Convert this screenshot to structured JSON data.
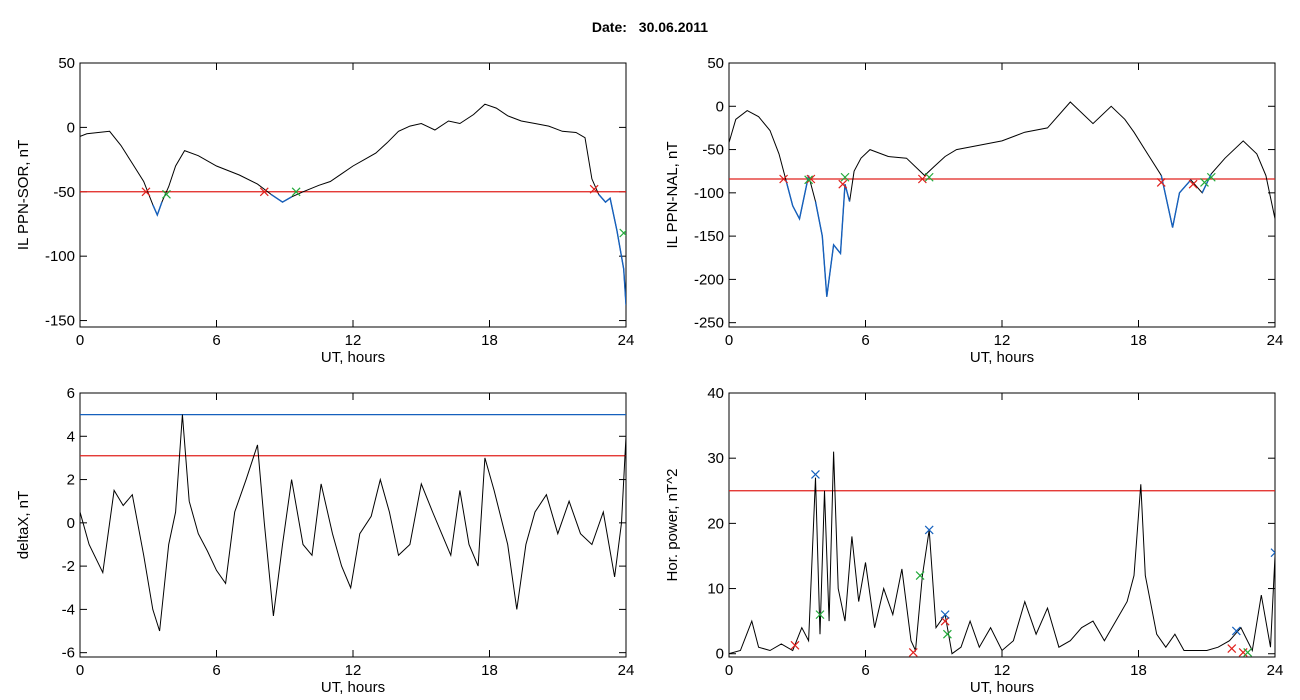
{
  "header": {
    "date_label": "Date:",
    "date_value": "30.06.2011"
  },
  "colors": {
    "signal": "#000000",
    "threshold": "#e0201c",
    "event": "#1560bd",
    "start_marker": "#e0201c",
    "end_marker": "#22a93a"
  },
  "chart_data": [
    {
      "type": "line",
      "xlabel": "UT, hours",
      "ylabel": "IL PPN-SOR, nT",
      "xlim": [
        0,
        24
      ],
      "ylim": [
        -155,
        50
      ],
      "xticks": [
        0,
        6,
        12,
        18,
        24
      ],
      "yticks": [
        -150,
        -100,
        -50,
        0,
        50
      ],
      "threshold": -50,
      "series": [
        {
          "values": [
            [
              0,
              -7
            ],
            [
              0.3,
              -5
            ],
            [
              0.8,
              -4
            ],
            [
              1.3,
              -3
            ],
            [
              1.8,
              -14
            ],
            [
              2.3,
              -28
            ],
            [
              2.8,
              -42
            ],
            [
              3.2,
              -60
            ],
            [
              3.4,
              -68
            ],
            [
              3.6,
              -58
            ],
            [
              3.9,
              -46
            ],
            [
              4.2,
              -30
            ],
            [
              4.6,
              -18
            ],
            [
              5.2,
              -22
            ],
            [
              6,
              -30
            ],
            [
              7,
              -37
            ],
            [
              7.8,
              -44
            ],
            [
              8.4,
              -52
            ],
            [
              8.9,
              -58
            ],
            [
              9.3,
              -54
            ],
            [
              9.8,
              -50
            ],
            [
              10.5,
              -45
            ],
            [
              11,
              -42
            ],
            [
              11.5,
              -36
            ],
            [
              12,
              -30
            ],
            [
              12.5,
              -25
            ],
            [
              13,
              -20
            ],
            [
              13.5,
              -12
            ],
            [
              14,
              -3
            ],
            [
              14.5,
              1
            ],
            [
              15,
              3
            ],
            [
              15.6,
              -2
            ],
            [
              16.2,
              5
            ],
            [
              16.7,
              3
            ],
            [
              17.3,
              10
            ],
            [
              17.8,
              18
            ],
            [
              18.3,
              15
            ],
            [
              18.8,
              9
            ],
            [
              19.4,
              5
            ],
            [
              20,
              3
            ],
            [
              20.6,
              1
            ],
            [
              21.2,
              -3
            ],
            [
              21.8,
              -4
            ],
            [
              22.2,
              -8
            ],
            [
              22.5,
              -40
            ],
            [
              22.8,
              -52
            ],
            [
              23.1,
              -58
            ],
            [
              23.3,
              -55
            ],
            [
              23.6,
              -80
            ],
            [
              23.9,
              -110
            ],
            [
              24,
              -138
            ]
          ]
        }
      ],
      "events": [
        {
          "start": 2.9,
          "end": 3.8
        },
        {
          "start": 8.1,
          "end": 9.6
        },
        {
          "start": 22.6,
          "end": 24
        }
      ],
      "start_markers": [
        [
          2.9,
          -50
        ],
        [
          8.1,
          -50
        ],
        [
          22.6,
          -48
        ]
      ],
      "end_markers": [
        [
          3.8,
          -52
        ],
        [
          9.5,
          -50
        ],
        [
          23.9,
          -82
        ]
      ]
    },
    {
      "type": "line",
      "xlabel": "UT, hours",
      "ylabel": "IL PPN-NAL, nT",
      "xlim": [
        0,
        24
      ],
      "ylim": [
        -255,
        50
      ],
      "xticks": [
        0,
        6,
        12,
        18,
        24
      ],
      "yticks": [
        -250,
        -200,
        -150,
        -100,
        -50,
        0,
        50
      ],
      "threshold": -84,
      "series": [
        {
          "values": [
            [
              0,
              -42
            ],
            [
              0.3,
              -15
            ],
            [
              0.8,
              -5
            ],
            [
              1.3,
              -12
            ],
            [
              1.8,
              -28
            ],
            [
              2.2,
              -55
            ],
            [
              2.5,
              -85
            ],
            [
              2.8,
              -115
            ],
            [
              3.1,
              -130
            ],
            [
              3.5,
              -80
            ],
            [
              3.8,
              -110
            ],
            [
              4.1,
              -150
            ],
            [
              4.3,
              -220
            ],
            [
              4.6,
              -160
            ],
            [
              4.9,
              -170
            ],
            [
              5.1,
              -90
            ],
            [
              5.3,
              -110
            ],
            [
              5.5,
              -75
            ],
            [
              5.8,
              -60
            ],
            [
              6.2,
              -50
            ],
            [
              7,
              -58
            ],
            [
              7.8,
              -60
            ],
            [
              8.6,
              -80
            ],
            [
              9,
              -70
            ],
            [
              9.5,
              -58
            ],
            [
              10,
              -50
            ],
            [
              11,
              -45
            ],
            [
              12,
              -40
            ],
            [
              13,
              -30
            ],
            [
              14,
              -25
            ],
            [
              15,
              5
            ],
            [
              16,
              -20
            ],
            [
              16.8,
              0
            ],
            [
              17.4,
              -15
            ],
            [
              17.8,
              -30
            ],
            [
              18.4,
              -55
            ],
            [
              19,
              -80
            ],
            [
              19.5,
              -140
            ],
            [
              19.8,
              -100
            ],
            [
              20.3,
              -85
            ],
            [
              20.8,
              -100
            ],
            [
              21.2,
              -78
            ],
            [
              21.8,
              -60
            ],
            [
              22.6,
              -40
            ],
            [
              23.2,
              -55
            ],
            [
              23.6,
              -80
            ],
            [
              24,
              -130
            ]
          ]
        }
      ],
      "events": [
        {
          "start": 2.4,
          "end": 3.6
        },
        {
          "start": 3.7,
          "end": 5.3
        },
        {
          "start": 8.5,
          "end": 8.8
        },
        {
          "start": 19,
          "end": 20.5
        },
        {
          "start": 20.6,
          "end": 21.2
        }
      ],
      "start_markers": [
        [
          2.4,
          -84
        ],
        [
          3.6,
          -84
        ],
        [
          5.0,
          -90
        ],
        [
          8.5,
          -84
        ],
        [
          19,
          -88
        ],
        [
          20.4,
          -90
        ]
      ],
      "end_markers": [
        [
          3.5,
          -85
        ],
        [
          5.1,
          -82
        ],
        [
          8.8,
          -82
        ],
        [
          20.9,
          -88
        ],
        [
          21.2,
          -82
        ]
      ]
    },
    {
      "type": "line",
      "xlabel": "UT, hours",
      "ylabel": "deltaX, nT",
      "xlim": [
        0,
        24
      ],
      "ylim": [
        -6.2,
        6
      ],
      "xticks": [
        0,
        6,
        12,
        18,
        24
      ],
      "yticks": [
        -6,
        -4,
        -2,
        0,
        2,
        4,
        6
      ],
      "threshold": 3.1,
      "threshold2": 5.0,
      "series": [
        {
          "values": [
            [
              0,
              0.5
            ],
            [
              0.4,
              -1
            ],
            [
              1,
              -2.3
            ],
            [
              1.5,
              1.5
            ],
            [
              1.9,
              0.8
            ],
            [
              2.3,
              1.3
            ],
            [
              2.8,
              -1.5
            ],
            [
              3.2,
              -4
            ],
            [
              3.5,
              -5
            ],
            [
              3.9,
              -1
            ],
            [
              4.2,
              0.5
            ],
            [
              4.5,
              5
            ],
            [
              4.8,
              1
            ],
            [
              5.2,
              -0.5
            ],
            [
              5.6,
              -1.3
            ],
            [
              6,
              -2.2
            ],
            [
              6.4,
              -2.8
            ],
            [
              6.8,
              0.5
            ],
            [
              7.3,
              2
            ],
            [
              7.8,
              3.6
            ],
            [
              8.1,
              0
            ],
            [
              8.5,
              -4.3
            ],
            [
              8.9,
              -1
            ],
            [
              9.3,
              2
            ],
            [
              9.8,
              -1
            ],
            [
              10.2,
              -1.5
            ],
            [
              10.6,
              1.8
            ],
            [
              11.1,
              -0.5
            ],
            [
              11.5,
              -2
            ],
            [
              11.9,
              -3
            ],
            [
              12.3,
              -0.5
            ],
            [
              12.8,
              0.3
            ],
            [
              13.2,
              2
            ],
            [
              13.6,
              0.5
            ],
            [
              14,
              -1.5
            ],
            [
              14.5,
              -1
            ],
            [
              15,
              1.8
            ],
            [
              15.5,
              0.5
            ],
            [
              15.9,
              -0.5
            ],
            [
              16.3,
              -1.5
            ],
            [
              16.7,
              1.5
            ],
            [
              17.1,
              -1
            ],
            [
              17.5,
              -2
            ],
            [
              17.8,
              3
            ],
            [
              18.2,
              1.5
            ],
            [
              18.8,
              -1
            ],
            [
              19.2,
              -4
            ],
            [
              19.6,
              -1
            ],
            [
              20,
              0.5
            ],
            [
              20.5,
              1.3
            ],
            [
              21,
              -0.5
            ],
            [
              21.5,
              1
            ],
            [
              22,
              -0.5
            ],
            [
              22.5,
              -1
            ],
            [
              23,
              0.5
            ],
            [
              23.5,
              -2.5
            ],
            [
              23.8,
              0
            ],
            [
              24,
              4
            ]
          ]
        }
      ],
      "events": []
    },
    {
      "type": "line",
      "xlabel": "UT, hours",
      "ylabel": "Hor. power, nT^2",
      "xlim": [
        0,
        24
      ],
      "ylim": [
        -0.5,
        40
      ],
      "xticks": [
        0,
        6,
        12,
        18,
        24
      ],
      "yticks": [
        0,
        10,
        20,
        30,
        40
      ],
      "threshold": 25,
      "series": [
        {
          "values": [
            [
              0,
              0
            ],
            [
              0.5,
              0.5
            ],
            [
              1,
              5
            ],
            [
              1.3,
              1
            ],
            [
              1.8,
              0.5
            ],
            [
              2.3,
              1.5
            ],
            [
              2.8,
              0.5
            ],
            [
              3.2,
              4
            ],
            [
              3.5,
              2
            ],
            [
              3.8,
              27
            ],
            [
              4,
              3
            ],
            [
              4.2,
              25
            ],
            [
              4.4,
              5
            ],
            [
              4.6,
              31
            ],
            [
              4.8,
              10
            ],
            [
              5.1,
              5
            ],
            [
              5.4,
              18
            ],
            [
              5.7,
              8
            ],
            [
              6,
              14
            ],
            [
              6.4,
              4
            ],
            [
              6.8,
              10
            ],
            [
              7.2,
              6
            ],
            [
              7.6,
              13
            ],
            [
              8,
              2
            ],
            [
              8.2,
              0.5
            ],
            [
              8.5,
              12
            ],
            [
              8.8,
              19
            ],
            [
              9.1,
              4
            ],
            [
              9.5,
              6
            ],
            [
              9.8,
              0
            ],
            [
              10.2,
              1
            ],
            [
              10.6,
              5
            ],
            [
              11,
              1
            ],
            [
              11.5,
              4
            ],
            [
              12,
              0.5
            ],
            [
              12.5,
              2
            ],
            [
              13,
              8
            ],
            [
              13.5,
              3
            ],
            [
              14,
              7
            ],
            [
              14.5,
              1
            ],
            [
              15,
              2
            ],
            [
              15.5,
              4
            ],
            [
              16,
              5
            ],
            [
              16.5,
              2
            ],
            [
              17,
              5
            ],
            [
              17.5,
              8
            ],
            [
              17.8,
              12
            ],
            [
              18.1,
              26
            ],
            [
              18.3,
              12
            ],
            [
              18.8,
              3
            ],
            [
              19.2,
              1
            ],
            [
              19.6,
              3
            ],
            [
              20,
              0.5
            ],
            [
              21,
              0.5
            ],
            [
              21.5,
              1
            ],
            [
              22,
              2
            ],
            [
              22.5,
              4
            ],
            [
              23,
              0.5
            ],
            [
              23.4,
              9
            ],
            [
              23.8,
              1
            ],
            [
              24,
              15
            ]
          ]
        }
      ],
      "events": [],
      "start_markers": [
        [
          2.9,
          1.3
        ],
        [
          8.1,
          0.2
        ],
        [
          9.5,
          5
        ],
        [
          22.1,
          0.8
        ],
        [
          22.6,
          0.2
        ]
      ],
      "end_markers": [
        [
          4.0,
          6
        ],
        [
          8.4,
          12
        ],
        [
          9.6,
          3
        ],
        [
          22.8,
          0.2
        ]
      ],
      "peak_markers": [
        [
          3.8,
          27.5
        ],
        [
          8.8,
          19
        ],
        [
          9.5,
          6
        ],
        [
          22.3,
          3.5
        ],
        [
          24,
          15.5
        ]
      ]
    }
  ]
}
